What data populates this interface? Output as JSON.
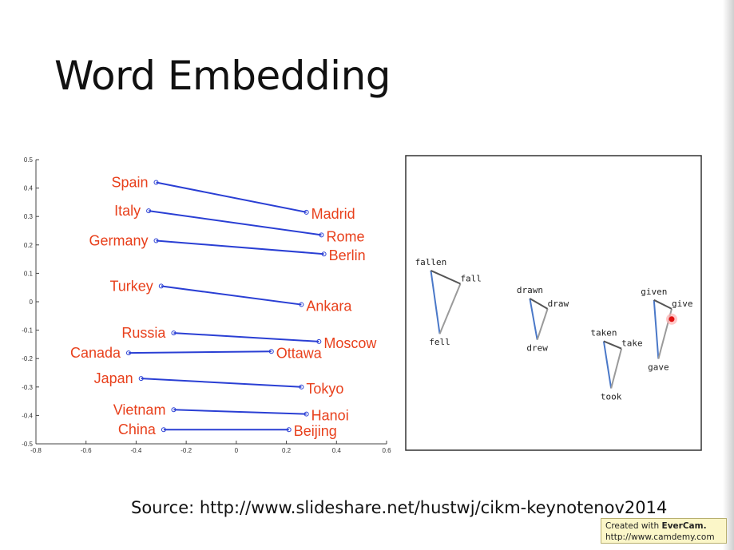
{
  "slide": {
    "title": "Word Embedding",
    "source": "Source: http://www.slideshare.net/hustwj/cikm-keynotenov2014",
    "watermark": {
      "line1_prefix": "Created with",
      "brand": "EverCam.",
      "line2": "http://www.camdemy.com"
    }
  },
  "chart_data": [
    {
      "type": "line",
      "title": "",
      "xlabel": "",
      "ylabel": "",
      "xlim": [
        -0.8,
        0.6
      ],
      "ylim": [
        -0.5,
        0.5
      ],
      "xticks": [
        "-0.8",
        "-0.6",
        "-0.4",
        "-0.2",
        "0",
        "0.2",
        "0.4",
        "0.6"
      ],
      "yticks": [
        "0.5",
        "0.4",
        "0.3",
        "0.2",
        "0.1",
        "0",
        "-0.1",
        "-0.2",
        "-0.3",
        "-0.4",
        "-0.5"
      ],
      "grid": false,
      "line_color": "#2a3fd4",
      "label_color": "#e8401c",
      "pairs": [
        {
          "country": "Spain",
          "capital": "Madrid",
          "country_xy": [
            -0.32,
            0.42
          ],
          "capital_xy": [
            0.28,
            0.315
          ]
        },
        {
          "country": "Italy",
          "capital": "Rome",
          "country_xy": [
            -0.35,
            0.32
          ],
          "capital_xy": [
            0.34,
            0.235
          ]
        },
        {
          "country": "Germany",
          "capital": "Berlin",
          "country_xy": [
            -0.32,
            0.215
          ],
          "capital_xy": [
            0.35,
            0.168
          ]
        },
        {
          "country": "Turkey",
          "capital": "Ankara",
          "country_xy": [
            -0.3,
            0.055
          ],
          "capital_xy": [
            0.26,
            -0.01
          ]
        },
        {
          "country": "Russia",
          "capital": "Moscow",
          "country_xy": [
            -0.25,
            -0.11
          ],
          "capital_xy": [
            0.33,
            -0.14
          ]
        },
        {
          "country": "Canada",
          "capital": "Ottawa",
          "country_xy": [
            -0.43,
            -0.18
          ],
          "capital_xy": [
            0.14,
            -0.175
          ]
        },
        {
          "country": "Japan",
          "capital": "Tokyo",
          "country_xy": [
            -0.38,
            -0.27
          ],
          "capital_xy": [
            0.26,
            -0.3
          ]
        },
        {
          "country": "Vietnam",
          "capital": "Hanoi",
          "country_xy": [
            -0.25,
            -0.38
          ],
          "capital_xy": [
            0.28,
            -0.395
          ]
        },
        {
          "country": "China",
          "capital": "Beijing",
          "country_xy": [
            -0.29,
            -0.45
          ],
          "capital_xy": [
            0.21,
            -0.45
          ]
        }
      ]
    },
    {
      "type": "scatter",
      "title": "",
      "description_axes": "none",
      "xlim": [
        0,
        100
      ],
      "ylim": [
        0,
        100
      ],
      "point_color": "#222222",
      "triangles": [
        {
          "past_participle": "fallen",
          "base": "fall",
          "past": "fell",
          "pp_xy": [
            8.5,
            61
          ],
          "base_xy": [
            18.5,
            56.5
          ],
          "past_xy": [
            11.5,
            39.5
          ]
        },
        {
          "past_participle": "drawn",
          "base": "draw",
          "past": "drew",
          "pp_xy": [
            42,
            51.5
          ],
          "base_xy": [
            48,
            48
          ],
          "past_xy": [
            44.5,
            37.5
          ]
        },
        {
          "past_participle": "taken",
          "base": "take",
          "past": "took",
          "pp_xy": [
            67,
            37
          ],
          "base_xy": [
            73,
            34.5
          ],
          "past_xy": [
            69.5,
            21
          ]
        },
        {
          "past_participle": "given",
          "base": "give",
          "past": "gave",
          "pp_xy": [
            84,
            51
          ],
          "base_xy": [
            90,
            48
          ],
          "past_xy": [
            85.5,
            31
          ]
        }
      ],
      "edge_colors": {
        "pp_to_past": "#4a78c8",
        "past_to_base": "#9a9a9a",
        "base_to_pp": "#555555"
      },
      "cursor_marker_xy": [
        90,
        44.5
      ]
    }
  ]
}
